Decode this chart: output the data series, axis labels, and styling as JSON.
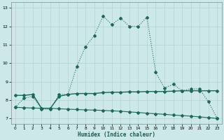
{
  "xlabel": "Humidex (Indice chaleur)",
  "background_color": "#cde8e8",
  "grid_color": "#b8d4d4",
  "line_color": "#1a6a5a",
  "xlim": [
    -0.5,
    23.5
  ],
  "ylim": [
    6.7,
    13.3
  ],
  "yticks": [
    7,
    8,
    9,
    10,
    11,
    12,
    13
  ],
  "xticks": [
    0,
    1,
    2,
    3,
    4,
    5,
    6,
    7,
    8,
    9,
    10,
    11,
    12,
    13,
    14,
    15,
    16,
    17,
    18,
    19,
    20,
    21,
    22,
    23
  ],
  "series1_x": [
    0,
    1,
    2,
    3,
    4,
    5,
    6,
    7,
    8,
    9,
    10,
    11,
    12,
    13,
    14,
    15,
    16,
    17,
    18,
    19,
    20,
    21,
    22,
    23
  ],
  "series1_y": [
    7.6,
    8.1,
    8.2,
    7.5,
    7.5,
    8.3,
    8.3,
    9.8,
    10.9,
    11.5,
    12.55,
    12.1,
    12.45,
    12.0,
    12.0,
    12.5,
    9.5,
    8.65,
    8.85,
    8.5,
    8.6,
    8.6,
    7.9,
    7.0
  ],
  "series2_x": [
    0,
    1,
    2,
    3,
    4,
    5,
    6,
    7,
    8,
    9,
    10,
    11,
    12,
    13,
    14,
    15,
    16,
    17,
    18,
    19,
    20,
    21,
    22,
    23
  ],
  "series2_y": [
    8.25,
    8.25,
    8.3,
    7.55,
    7.55,
    8.2,
    8.3,
    8.35,
    8.35,
    8.35,
    8.4,
    8.42,
    8.42,
    8.44,
    8.44,
    8.46,
    8.46,
    8.46,
    8.48,
    8.5,
    8.5,
    8.5,
    8.5,
    8.5
  ],
  "series3_x": [
    0,
    1,
    2,
    3,
    4,
    5,
    6,
    7,
    8,
    9,
    10,
    11,
    12,
    13,
    14,
    15,
    16,
    17,
    18,
    19,
    20,
    21,
    22,
    23
  ],
  "series3_y": [
    7.6,
    7.58,
    7.56,
    7.55,
    7.55,
    7.52,
    7.5,
    7.48,
    7.46,
    7.45,
    7.43,
    7.41,
    7.39,
    7.35,
    7.32,
    7.28,
    7.25,
    7.22,
    7.18,
    7.15,
    7.12,
    7.08,
    7.04,
    7.0
  ]
}
